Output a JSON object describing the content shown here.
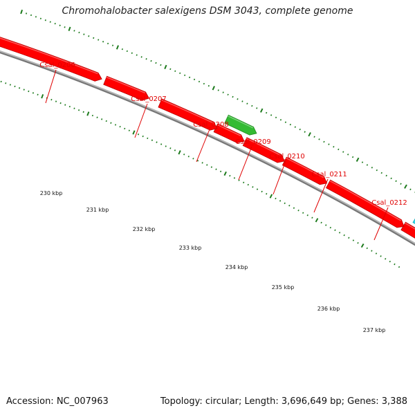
{
  "title": "Chromohalobacter salexigens DSM 3043, complete genome",
  "footer": {
    "accession": "Accession: NC_007963",
    "info": "Topology: circular; Length: 3,696,649 bp; Genes: 3,388"
  },
  "colors": {
    "cds": "#ff0000",
    "cds_dark": "#b80000",
    "rna": "#33bb33",
    "other": "#33ddee",
    "tick": "#1c7a1c",
    "backbone": "#999999",
    "label": "#e00000"
  },
  "genes": [
    {
      "name": "Csal_0206",
      "type": "cds"
    },
    {
      "name": "Csal_0207",
      "type": "cds"
    },
    {
      "name": "Csal_0208",
      "type": "cds"
    },
    {
      "name": "Csal_0209",
      "type": "rna"
    },
    {
      "name": "Csal_0210",
      "type": "cds"
    },
    {
      "name": "Csal_0211",
      "type": "cds"
    },
    {
      "name": "Csal_0212",
      "type": "cds"
    }
  ],
  "kbp_labels": [
    "230 kbp",
    "231 kbp",
    "232 kbp",
    "233 kbp",
    "234 kbp",
    "235 kbp",
    "236 kbp",
    "237 kbp"
  ]
}
